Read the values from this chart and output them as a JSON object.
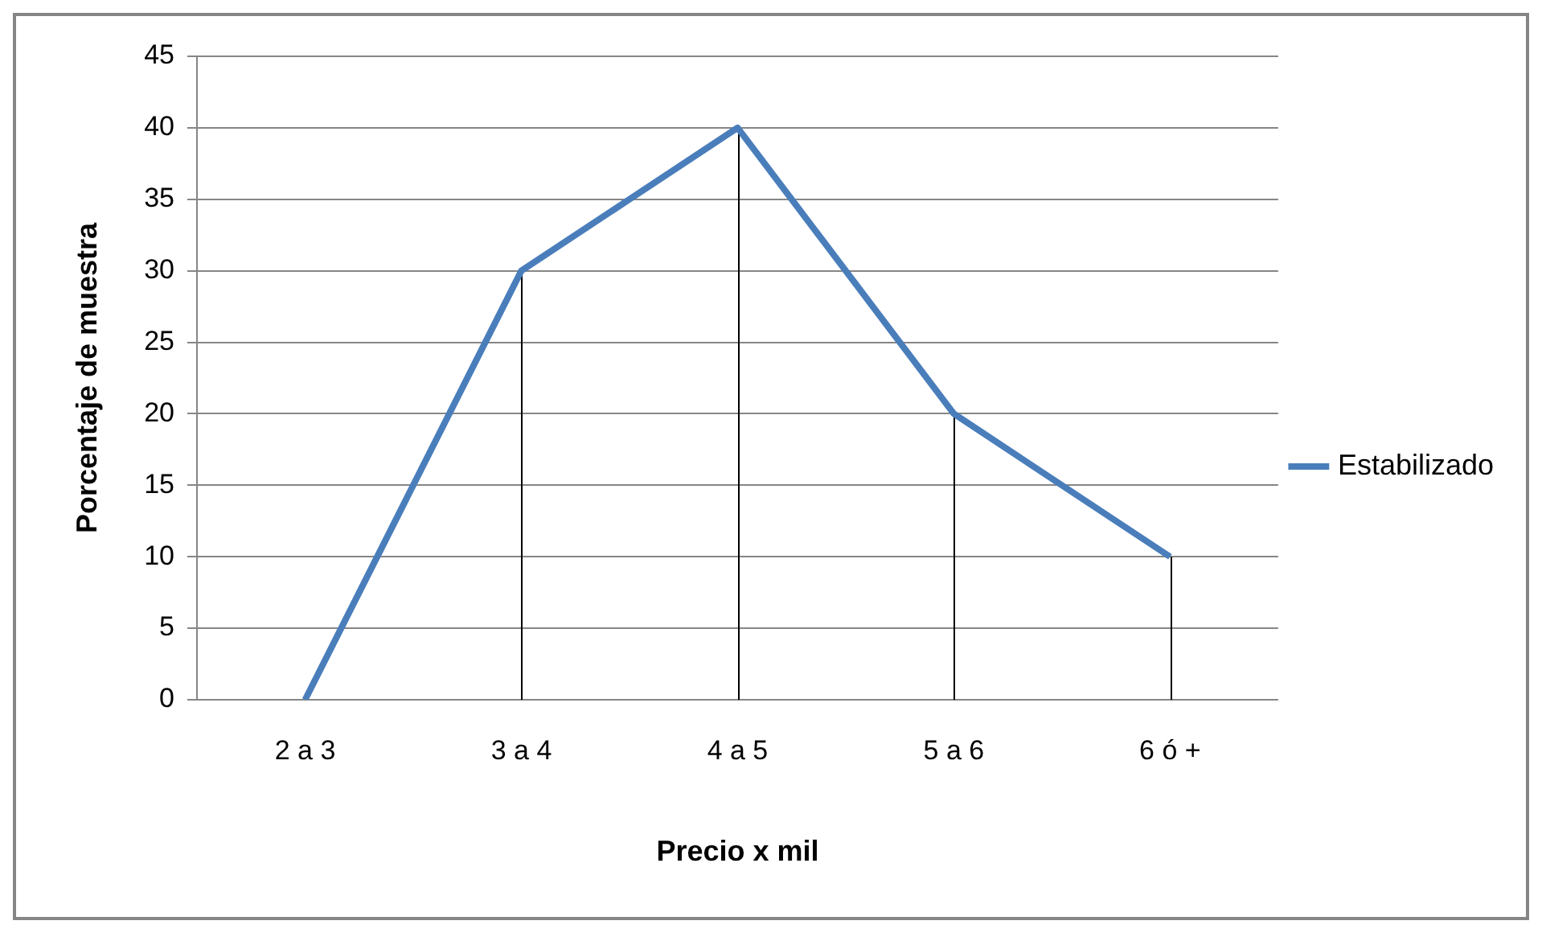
{
  "chart_data": {
    "type": "line",
    "xlabel": "Precio x mil",
    "ylabel": "Porcentaje de muestra",
    "categories": [
      "2 a 3",
      "3 a 4",
      "4 a 5",
      "5 a 6",
      "6 ó +"
    ],
    "series": [
      {
        "name": "Estabilizado",
        "color": "#4a7ebb",
        "values": [
          0,
          30,
          40,
          20,
          10
        ],
        "errors": [
          null,
          [
            0,
            30
          ],
          [
            0,
            40
          ],
          [
            0,
            20
          ],
          [
            0,
            10
          ]
        ]
      }
    ],
    "ylim": [
      0,
      45
    ],
    "yticks": [
      0,
      5,
      10,
      15,
      20,
      25,
      30,
      35,
      40,
      45
    ],
    "grid": "y",
    "legend": "right",
    "marker": "none",
    "line_style": "solid"
  }
}
